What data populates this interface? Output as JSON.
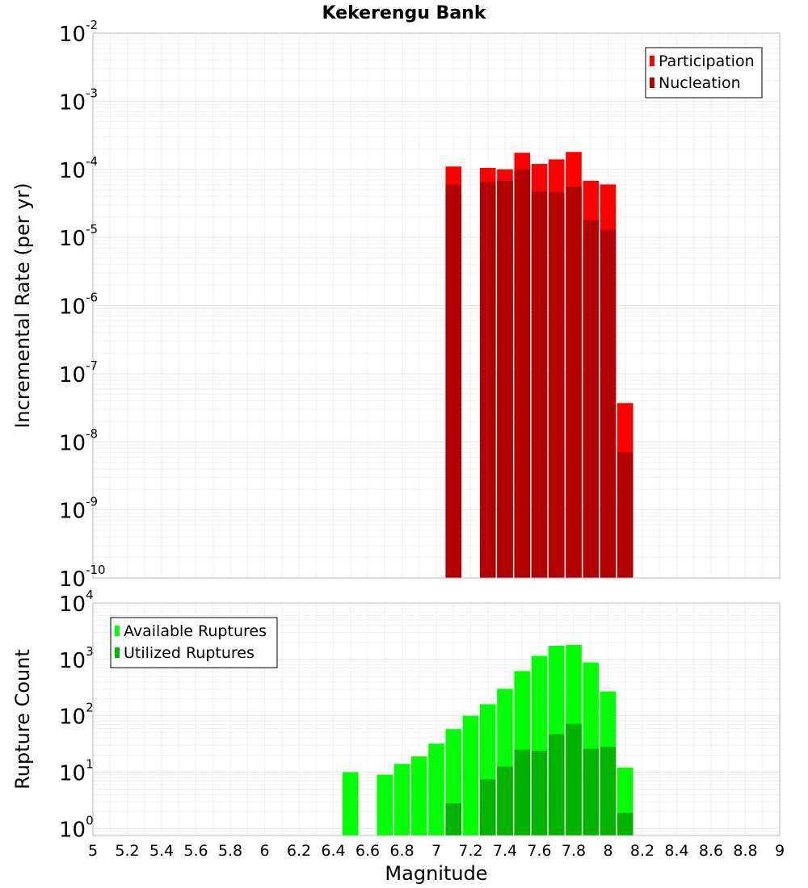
{
  "chart_data": [
    {
      "type": "bar",
      "title": "Kekerengu Bank",
      "xlabel": "",
      "ylabel": "Incremental Rate (per yr)",
      "yscale": "log",
      "xlim": [
        5,
        9
      ],
      "ylim": [
        1e-10,
        0.01
      ],
      "y_ticks": [
        {
          "base": "10",
          "exp": "-10"
        },
        {
          "base": "10",
          "exp": "-9"
        },
        {
          "base": "10",
          "exp": "-8"
        },
        {
          "base": "10",
          "exp": "-7"
        },
        {
          "base": "10",
          "exp": "-6"
        },
        {
          "base": "10",
          "exp": "-5"
        },
        {
          "base": "10",
          "exp": "-4"
        },
        {
          "base": "10",
          "exp": "-3"
        },
        {
          "base": "10",
          "exp": "-2"
        }
      ],
      "legend_position": "top-right",
      "x": [
        7.1,
        7.3,
        7.4,
        7.5,
        7.6,
        7.7,
        7.8,
        7.9,
        8.0,
        8.1
      ],
      "series": [
        {
          "name": "Participation",
          "color": "#ff0000",
          "values": [
            0.00011,
            0.000105,
            0.0001,
            0.000175,
            0.00012,
            0.00014,
            0.00018,
            6.8e-05,
            6e-05,
            3.7e-08
          ]
        },
        {
          "name": "Nucleation",
          "color": "#b30000",
          "values": [
            6e-05,
            6.5e-05,
            6.8e-05,
            0.0001,
            4.7e-05,
            4.6e-05,
            5.6e-05,
            1.8e-05,
            1.3e-05,
            7e-09
          ]
        }
      ]
    },
    {
      "type": "bar",
      "title": "",
      "xlabel": "Magnitude",
      "ylabel": "Rupture Count",
      "yscale": "log",
      "xlim": [
        5,
        9
      ],
      "ylim": [
        0.75,
        10000.0
      ],
      "x_ticks": [
        "5",
        "5.2",
        "5.4",
        "5.6",
        "5.8",
        "6",
        "6.2",
        "6.4",
        "6.6",
        "6.8",
        "7",
        "7.2",
        "7.4",
        "7.6",
        "7.8",
        "8",
        "8.2",
        "8.4",
        "8.6",
        "8.8",
        "9"
      ],
      "y_ticks": [
        {
          "base": "10",
          "exp": "0"
        },
        {
          "base": "10",
          "exp": "1"
        },
        {
          "base": "10",
          "exp": "2"
        },
        {
          "base": "10",
          "exp": "3"
        },
        {
          "base": "10",
          "exp": "4"
        }
      ],
      "legend_position": "top-left",
      "series": [
        {
          "name": "Available Ruptures",
          "color": "#00ff00",
          "x": [
            6.5,
            6.7,
            6.8,
            6.9,
            7.0,
            7.1,
            7.2,
            7.3,
            7.4,
            7.5,
            7.6,
            7.7,
            7.8,
            7.9,
            8.0,
            8.1
          ],
          "values": [
            10,
            9,
            14,
            19,
            32,
            58,
            100,
            160,
            300,
            620,
            1150,
            1750,
            1800,
            880,
            270,
            12
          ]
        },
        {
          "name": "Utilized Ruptures",
          "color": "#00b300",
          "x": [
            7.1,
            7.3,
            7.4,
            7.5,
            7.6,
            7.7,
            7.8,
            7.9,
            8.0,
            8.1
          ],
          "values": [
            2.8,
            7.5,
            12.5,
            25,
            24,
            47,
            72,
            26,
            28,
            1.9
          ]
        }
      ]
    }
  ]
}
